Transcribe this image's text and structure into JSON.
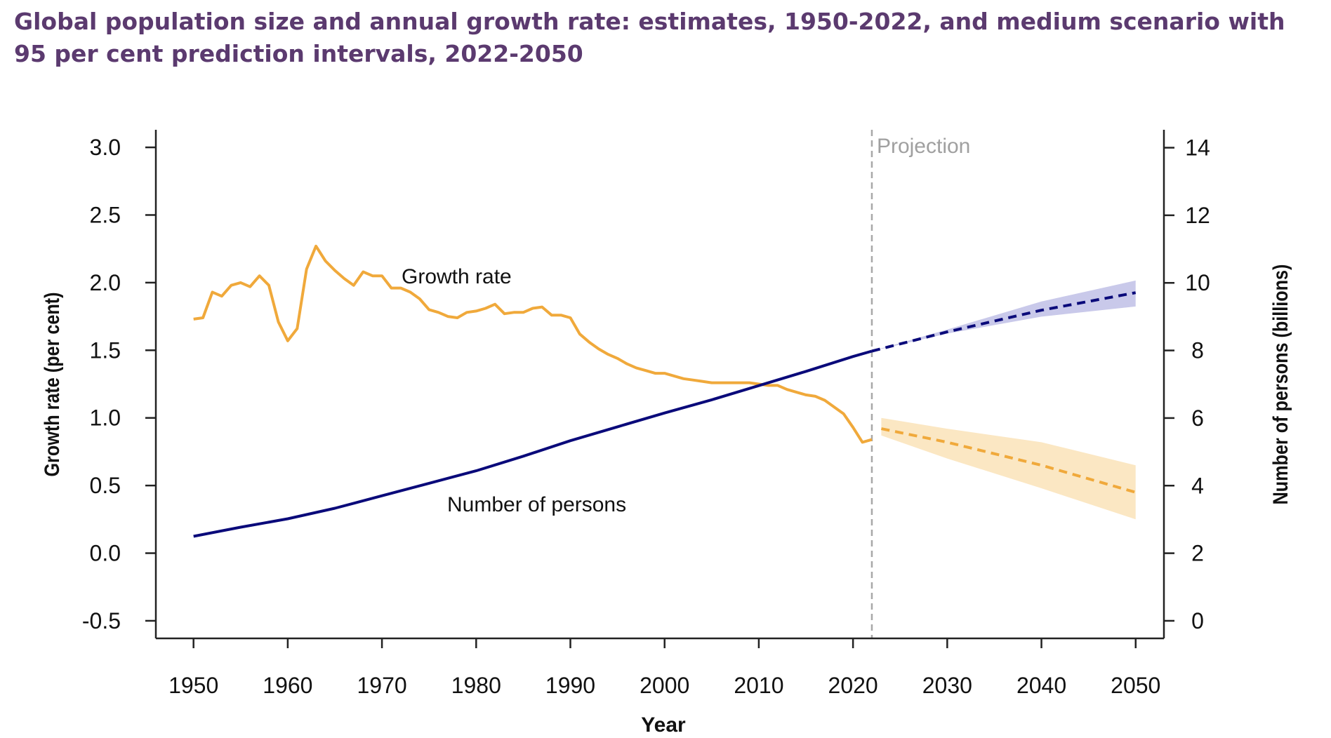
{
  "title": "Global population size and annual growth rate: estimates, 1950-2022, and medium scenario with 95 per cent prediction intervals, 2022-2050",
  "chart_data": {
    "type": "line",
    "title": "Global population size and annual growth rate: estimates, 1950-2022, and medium scenario with 95 per cent prediction intervals, 2022-2050",
    "xlabel": "Year",
    "ylabel_left": "Growth rate (per cent)",
    "ylabel_right": "Number of persons (billions)",
    "xlim": [
      1946,
      2053
    ],
    "ylim_left": [
      -0.63,
      3.13
    ],
    "ylim_right": [
      -0.52,
      14.53
    ],
    "x_ticks": [
      "1950",
      "1960",
      "1970",
      "1980",
      "1990",
      "2000",
      "2010",
      "2020",
      "2030",
      "2040",
      "2050"
    ],
    "y_left_ticks": [
      "-0.5",
      "0.0",
      "0.5",
      "1.0",
      "1.5",
      "2.0",
      "2.5",
      "3.0"
    ],
    "y_right_ticks": [
      "0",
      "2",
      "4",
      "6",
      "8",
      "10",
      "12",
      "14"
    ],
    "projection_start": 2022,
    "projection_label": "Projection",
    "grid": false,
    "colors": {
      "growth": "#f0a93b",
      "growth_band": "#fbe7c3",
      "population": "#0a0a7a",
      "population_band": "#c9c9ea",
      "projection_line": "#a8a8a8",
      "title": "#5b3a6f"
    },
    "series": [
      {
        "name": "Growth rate",
        "axis": "left",
        "estimates": {
          "x": [
            1950,
            1951,
            1952,
            1953,
            1954,
            1955,
            1956,
            1957,
            1958,
            1959,
            1960,
            1961,
            1962,
            1963,
            1964,
            1965,
            1966,
            1967,
            1968,
            1969,
            1970,
            1971,
            1972,
            1973,
            1974,
            1975,
            1976,
            1977,
            1978,
            1979,
            1980,
            1981,
            1982,
            1983,
            1984,
            1985,
            1986,
            1987,
            1988,
            1989,
            1990,
            1991,
            1992,
            1993,
            1994,
            1995,
            1996,
            1997,
            1998,
            1999,
            2000,
            2001,
            2002,
            2003,
            2004,
            2005,
            2006,
            2007,
            2008,
            2009,
            2010,
            2011,
            2012,
            2013,
            2014,
            2015,
            2016,
            2017,
            2018,
            2019,
            2020,
            2021,
            2022
          ],
          "y": [
            1.73,
            1.74,
            1.93,
            1.9,
            1.98,
            2.0,
            1.97,
            2.05,
            1.98,
            1.71,
            1.57,
            1.66,
            2.1,
            2.27,
            2.16,
            2.09,
            2.03,
            1.98,
            2.08,
            2.05,
            2.05,
            1.96,
            1.96,
            1.93,
            1.88,
            1.8,
            1.78,
            1.75,
            1.74,
            1.78,
            1.79,
            1.81,
            1.84,
            1.77,
            1.78,
            1.78,
            1.81,
            1.82,
            1.76,
            1.76,
            1.74,
            1.62,
            1.56,
            1.51,
            1.47,
            1.44,
            1.4,
            1.37,
            1.35,
            1.33,
            1.33,
            1.31,
            1.29,
            1.28,
            1.27,
            1.26,
            1.26,
            1.26,
            1.26,
            1.26,
            1.25,
            1.24,
            1.24,
            1.21,
            1.19,
            1.17,
            1.16,
            1.13,
            1.08,
            1.03,
            0.93,
            0.82,
            0.84
          ]
        },
        "projection": {
          "x": [
            2023,
            2030,
            2040,
            2050
          ],
          "y": [
            0.92,
            0.82,
            0.65,
            0.45
          ],
          "lower": [
            0.87,
            0.7,
            0.48,
            0.25
          ],
          "upper": [
            1.0,
            0.92,
            0.82,
            0.65
          ]
        }
      },
      {
        "name": "Number of persons",
        "axis": "right",
        "estimates": {
          "x": [
            1950,
            1955,
            1960,
            1965,
            1970,
            1975,
            1980,
            1985,
            1990,
            1995,
            2000,
            2005,
            2010,
            2015,
            2020,
            2022
          ],
          "y": [
            2.5,
            2.77,
            3.02,
            3.33,
            3.7,
            4.07,
            4.44,
            4.87,
            5.33,
            5.74,
            6.15,
            6.54,
            6.96,
            7.38,
            7.82,
            7.98
          ]
        },
        "projection": {
          "x": [
            2022,
            2030,
            2040,
            2050
          ],
          "y": [
            7.98,
            8.55,
            9.19,
            9.71
          ],
          "lower": [
            7.98,
            8.5,
            9.0,
            9.3
          ],
          "upper": [
            7.98,
            8.62,
            9.45,
            10.07
          ]
        }
      }
    ]
  }
}
